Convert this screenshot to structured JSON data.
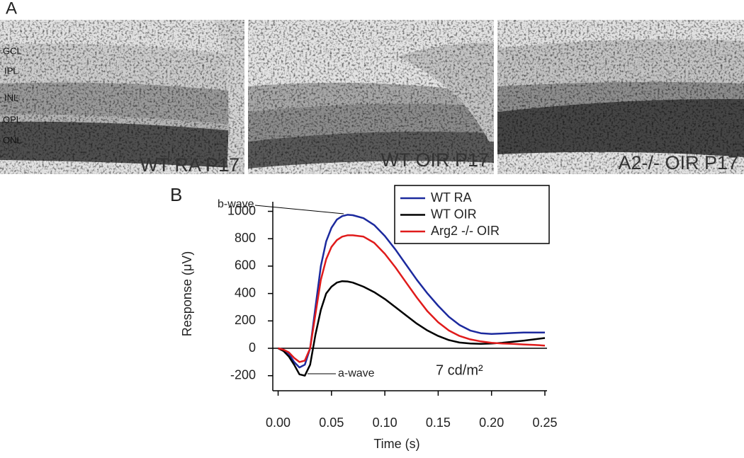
{
  "panel_a": {
    "label": "A",
    "layers": [
      "GCL",
      "IPL",
      "INL",
      "OPL",
      "ONL"
    ],
    "images": [
      {
        "caption": "WT RA P17"
      },
      {
        "caption": "WT OIR P17"
      },
      {
        "caption": "A2-/- OIR P17"
      }
    ]
  },
  "chart_data": {
    "type": "line",
    "panel_label": "B",
    "xlabel": "Time (s)",
    "ylabel": "Response (μV)",
    "x": [
      0,
      0.005,
      0.01,
      0.015,
      0.02,
      0.025,
      0.03,
      0.035,
      0.04,
      0.045,
      0.05,
      0.055,
      0.06,
      0.065,
      0.07,
      0.08,
      0.09,
      0.1,
      0.11,
      0.12,
      0.13,
      0.14,
      0.15,
      0.16,
      0.17,
      0.18,
      0.19,
      0.2,
      0.21,
      0.22,
      0.23,
      0.24,
      0.25
    ],
    "series": [
      {
        "name": "WT RA",
        "color": "#1c2a9e",
        "values": [
          0,
          -10,
          -40,
          -100,
          -140,
          -120,
          0,
          300,
          600,
          780,
          880,
          940,
          965,
          975,
          972,
          950,
          900,
          820,
          720,
          610,
          500,
          400,
          310,
          230,
          170,
          130,
          110,
          105,
          108,
          112,
          115,
          115,
          115
        ]
      },
      {
        "name": "WT OIR",
        "color": "#000000",
        "values": [
          0,
          -20,
          -60,
          -120,
          -190,
          -200,
          -120,
          100,
          280,
          400,
          450,
          480,
          490,
          488,
          480,
          450,
          410,
          360,
          300,
          240,
          180,
          130,
          90,
          60,
          42,
          35,
          32,
          35,
          40,
          48,
          56,
          65,
          75
        ]
      },
      {
        "name": "Arg2 -/- OIR",
        "color": "#e01b1b",
        "values": [
          0,
          -10,
          -30,
          -70,
          -100,
          -90,
          0,
          250,
          500,
          650,
          740,
          790,
          815,
          825,
          825,
          815,
          770,
          690,
          590,
          480,
          370,
          270,
          190,
          130,
          90,
          65,
          50,
          40,
          35,
          32,
          28,
          25,
          20
        ]
      }
    ],
    "xlim": [
      -0.005,
      0.252
    ],
    "ylim": [
      -310,
      1070
    ],
    "xticks": [
      {
        "value": 0,
        "label": "0.00"
      },
      {
        "value": 0.05,
        "label": "0.05"
      },
      {
        "value": 0.1,
        "label": "0.10"
      },
      {
        "value": 0.15,
        "label": "0.15"
      },
      {
        "value": 0.2,
        "label": "0.20"
      },
      {
        "value": 0.25,
        "label": "0.25"
      }
    ],
    "yticks": [
      -200,
      0,
      200,
      400,
      600,
      800,
      1000
    ],
    "zero_line": 0,
    "annotations": [
      "b-wave",
      "a-wave",
      "7 cd/m²"
    ]
  }
}
